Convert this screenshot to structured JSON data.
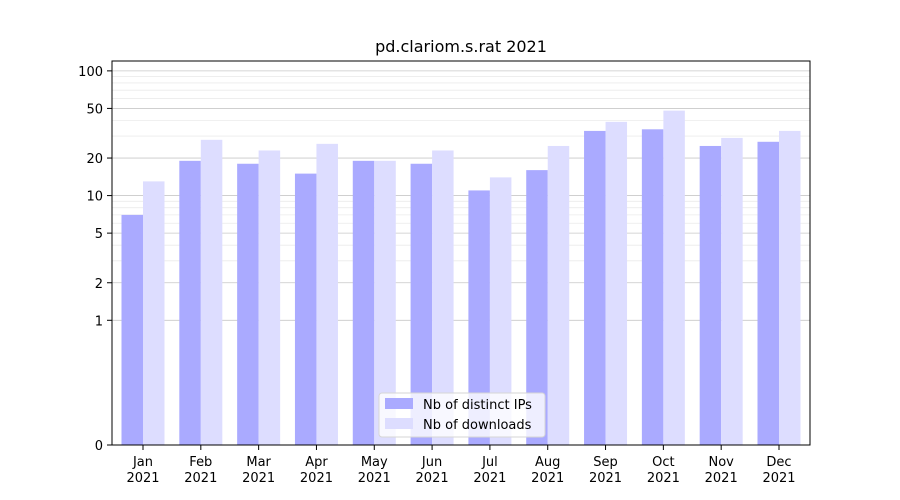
{
  "chart_data": {
    "type": "bar",
    "title": "pd.clariom.s.rat 2021",
    "xlabel": "",
    "ylabel": "",
    "yscale": "symlog",
    "ylim": [
      0,
      120
    ],
    "yticks": [
      0,
      1,
      2,
      5,
      10,
      20,
      50,
      100
    ],
    "grid": true,
    "legend_position": "lower center",
    "categories": [
      "Jan\n2021",
      "Feb\n2021",
      "Mar\n2021",
      "Apr\n2021",
      "May\n2021",
      "Jun\n2021",
      "Jul\n2021",
      "Aug\n2021",
      "Sep\n2021",
      "Oct\n2021",
      "Nov\n2021",
      "Dec\n2021"
    ],
    "series": [
      {
        "name": "Nb of distinct IPs",
        "color": "#aaaaff",
        "values": [
          7,
          19,
          18,
          15,
          19,
          18,
          11,
          16,
          33,
          34,
          25,
          27
        ]
      },
      {
        "name": "Nb of downloads",
        "color": "#ddddff",
        "values": [
          13,
          28,
          23,
          26,
          19,
          23,
          14,
          25,
          39,
          48,
          29,
          33
        ]
      }
    ]
  }
}
